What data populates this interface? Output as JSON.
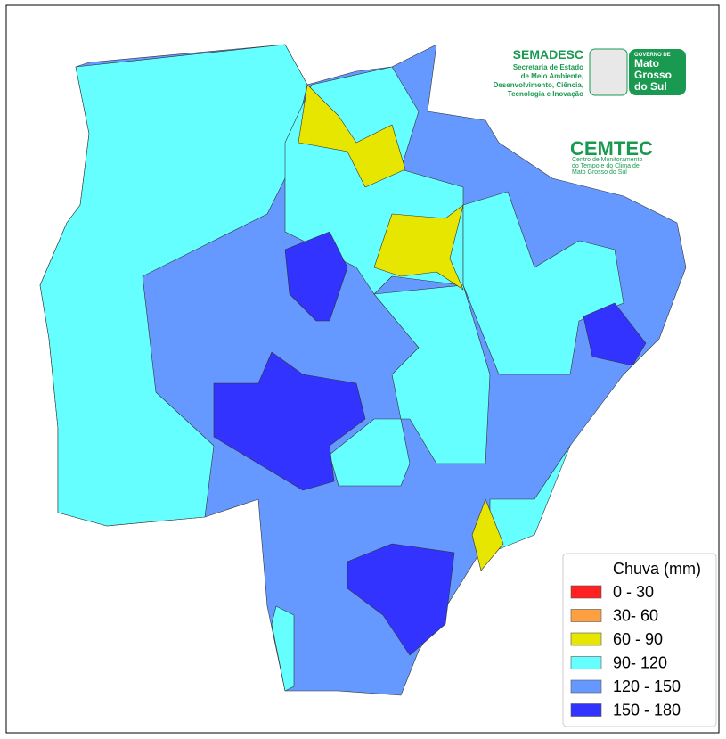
{
  "header": {
    "semadesc": "SEMADESC",
    "semadesc_lines": [
      "Secretaria de Estado",
      "de Meio Ambiente,",
      "Desenvolvimento, Ciência,",
      "Tecnologia e Inovação"
    ],
    "governo": "GOVERNO DE",
    "governo_lines": [
      "Mato",
      "Grosso",
      "do Sul"
    ],
    "cemtec": "CEMTEC",
    "cemtec_lines": [
      "Centro de Monitoramento",
      "do Tempo e do Clima de",
      "Mato Grosso do Sul"
    ]
  },
  "legend": {
    "title": "Chuva (mm)",
    "items": [
      {
        "label": "0 - 30",
        "color": "#ff2020"
      },
      {
        "label": "30- 60",
        "color": "#ffa040"
      },
      {
        "label": "60 - 90",
        "color": "#e6e600"
      },
      {
        "label": "90- 120",
        "color": "#66ffff"
      },
      {
        "label": "120 - 150",
        "color": "#6699ff"
      },
      {
        "label": "150 - 180",
        "color": "#3333ff"
      }
    ]
  }
}
